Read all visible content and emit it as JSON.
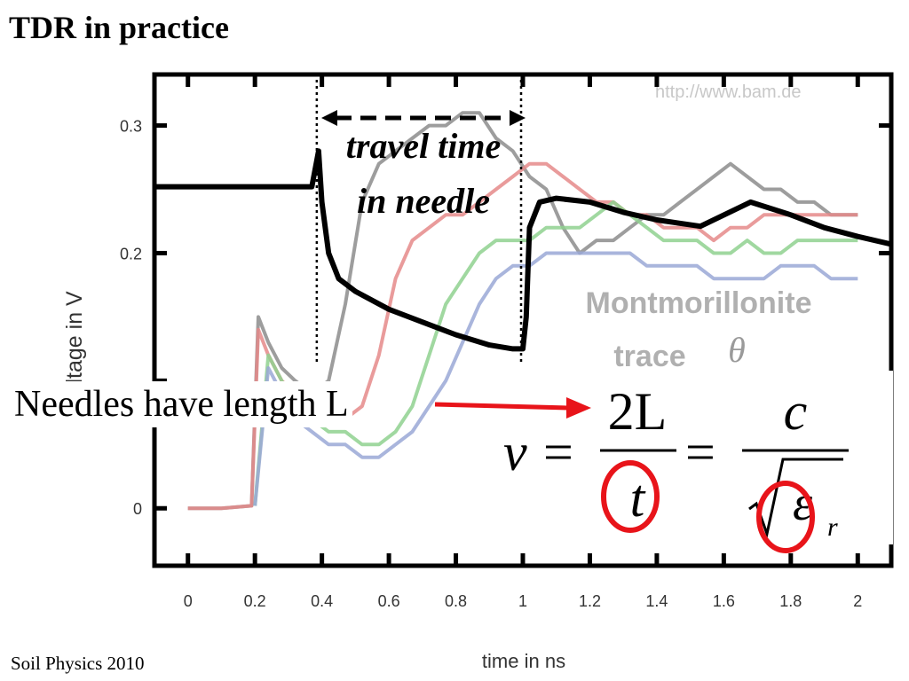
{
  "slide": {
    "title": "TDR in practice",
    "footer": "Soil Physics 2010",
    "needles_text": "Needles have length L"
  },
  "chart_data": {
    "type": "line",
    "xlabel": "time in ns",
    "ylabel": "Voltage in V",
    "xlim": [
      -0.1,
      2.1
    ],
    "ylim": [
      -0.045,
      0.34
    ],
    "x_ticks": [
      0,
      0.2,
      0.4,
      0.6,
      0.8,
      1,
      1.2,
      1.4,
      1.6,
      1.8,
      2
    ],
    "x_tick_labels": [
      "0",
      "0.2",
      "0.4",
      "0.6",
      "0.8",
      "1",
      "1.2",
      "1.4",
      "1.6",
      "1.8",
      "2"
    ],
    "y_ticks": [
      0,
      0.2,
      0.3
    ],
    "y_tick_labels": [
      "0",
      "0.2",
      "0.3"
    ],
    "watermark": "http://www.bam.de",
    "series": [
      {
        "color": "#8c8c8c",
        "x": [
          0,
          0.1,
          0.19,
          0.21,
          0.24,
          0.28,
          0.32,
          0.37,
          0.42,
          0.47,
          0.52,
          0.57,
          0.62,
          0.67,
          0.72,
          0.77,
          0.82,
          0.87,
          0.92,
          0.97,
          1.02,
          1.07,
          1.12,
          1.17,
          1.22,
          1.27,
          1.32,
          1.37,
          1.42,
          1.47,
          1.52,
          1.57,
          1.62,
          1.67,
          1.72,
          1.77,
          1.82,
          1.87,
          1.92,
          1.97,
          2.0
        ],
        "y": [
          0,
          0,
          0.002,
          0.15,
          0.13,
          0.11,
          0.1,
          0.09,
          0.1,
          0.16,
          0.24,
          0.27,
          0.28,
          0.29,
          0.3,
          0.3,
          0.31,
          0.31,
          0.29,
          0.28,
          0.26,
          0.25,
          0.22,
          0.2,
          0.21,
          0.21,
          0.22,
          0.23,
          0.23,
          0.24,
          0.25,
          0.26,
          0.27,
          0.26,
          0.25,
          0.25,
          0.24,
          0.24,
          0.23,
          0.23,
          0.23
        ]
      },
      {
        "color": "#e58a8a",
        "x": [
          0,
          0.1,
          0.19,
          0.21,
          0.24,
          0.28,
          0.32,
          0.37,
          0.42,
          0.47,
          0.52,
          0.57,
          0.62,
          0.67,
          0.72,
          0.77,
          0.82,
          0.87,
          0.92,
          0.97,
          1.02,
          1.07,
          1.12,
          1.17,
          1.22,
          1.27,
          1.32,
          1.37,
          1.42,
          1.47,
          1.52,
          1.57,
          1.62,
          1.67,
          1.72,
          1.77,
          1.82,
          1.87,
          1.92,
          1.97,
          2.0
        ],
        "y": [
          0,
          0,
          0.002,
          0.14,
          0.12,
          0.1,
          0.09,
          0.08,
          0.07,
          0.07,
          0.08,
          0.12,
          0.18,
          0.21,
          0.22,
          0.23,
          0.23,
          0.24,
          0.25,
          0.26,
          0.27,
          0.27,
          0.26,
          0.25,
          0.24,
          0.24,
          0.23,
          0.23,
          0.22,
          0.22,
          0.22,
          0.21,
          0.22,
          0.22,
          0.23,
          0.23,
          0.23,
          0.23,
          0.23,
          0.23,
          0.23
        ]
      },
      {
        "color": "#8fd18f",
        "x": [
          0.2,
          0.24,
          0.28,
          0.32,
          0.37,
          0.42,
          0.47,
          0.52,
          0.57,
          0.62,
          0.67,
          0.72,
          0.77,
          0.82,
          0.87,
          0.92,
          0.97,
          1.02,
          1.07,
          1.12,
          1.17,
          1.22,
          1.27,
          1.32,
          1.37,
          1.42,
          1.47,
          1.52,
          1.57,
          1.62,
          1.67,
          1.72,
          1.77,
          1.82,
          1.87,
          1.92,
          1.97,
          2.0
        ],
        "y": [
          0.002,
          0.12,
          0.1,
          0.08,
          0.07,
          0.06,
          0.06,
          0.05,
          0.05,
          0.06,
          0.08,
          0.12,
          0.16,
          0.18,
          0.2,
          0.21,
          0.21,
          0.21,
          0.22,
          0.22,
          0.22,
          0.23,
          0.24,
          0.23,
          0.22,
          0.21,
          0.21,
          0.21,
          0.2,
          0.2,
          0.21,
          0.2,
          0.2,
          0.21,
          0.21,
          0.21,
          0.21,
          0.21
        ]
      },
      {
        "color": "#9aa8d6",
        "x": [
          0.2,
          0.24,
          0.28,
          0.32,
          0.37,
          0.42,
          0.47,
          0.52,
          0.57,
          0.62,
          0.67,
          0.72,
          0.77,
          0.82,
          0.87,
          0.92,
          0.97,
          1.02,
          1.07,
          1.12,
          1.17,
          1.22,
          1.27,
          1.32,
          1.37,
          1.42,
          1.47,
          1.52,
          1.57,
          1.62,
          1.67,
          1.72,
          1.77,
          1.82,
          1.87,
          1.92,
          1.97,
          2.0
        ],
        "y": [
          0.002,
          0.11,
          0.09,
          0.07,
          0.06,
          0.05,
          0.05,
          0.04,
          0.04,
          0.05,
          0.06,
          0.08,
          0.1,
          0.13,
          0.16,
          0.18,
          0.19,
          0.19,
          0.2,
          0.2,
          0.2,
          0.2,
          0.2,
          0.2,
          0.19,
          0.19,
          0.19,
          0.19,
          0.18,
          0.18,
          0.18,
          0.18,
          0.19,
          0.19,
          0.19,
          0.18,
          0.18,
          0.18
        ]
      },
      {
        "color": "#000000",
        "x": [
          -0.1,
          0.37,
          0.39,
          0.4,
          0.42,
          0.45,
          0.5,
          0.6,
          0.7,
          0.8,
          0.9,
          0.97,
          1.0,
          1.01,
          1.02,
          1.05,
          1.1,
          1.2,
          1.3,
          1.4,
          1.53,
          1.68,
          1.8,
          1.9,
          2.0,
          2.1
        ],
        "y": [
          0.252,
          0.252,
          0.28,
          0.24,
          0.2,
          0.18,
          0.17,
          0.156,
          0.146,
          0.136,
          0.128,
          0.125,
          0.125,
          0.15,
          0.22,
          0.24,
          0.243,
          0.24,
          0.232,
          0.226,
          0.221,
          0.24,
          0.23,
          0.22,
          0.213,
          0.207
        ]
      }
    ],
    "annotations": {
      "travel_time_line1": "travel time",
      "travel_time_line2": "in needle",
      "material": "Montmorillonite",
      "trace": "trace",
      "theta": "θ"
    },
    "markers": {
      "start_x": 0.39,
      "end_x": 1.0
    }
  },
  "formula": {
    "v": "v",
    "eq": "=",
    "numerator": "2L",
    "denominator": "t",
    "c": "c",
    "epsilon": "ε",
    "sub_r": "r",
    "circle_color": "#e8141a",
    "arrow_color": "#e8141a"
  }
}
